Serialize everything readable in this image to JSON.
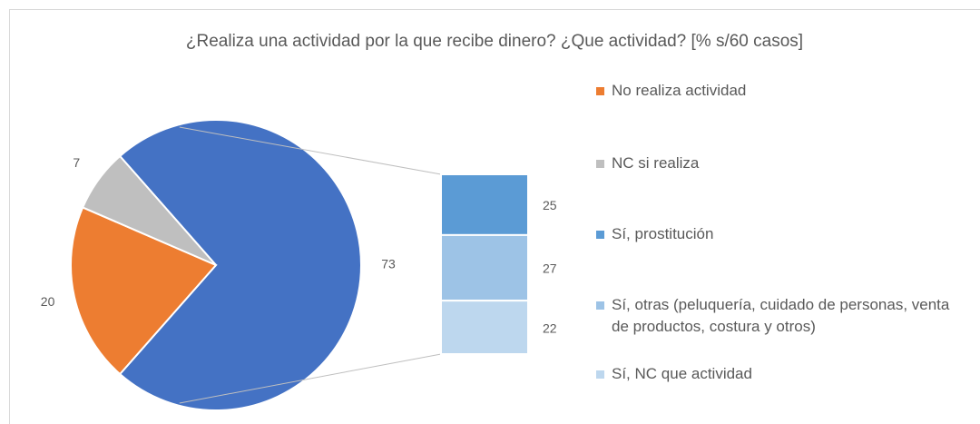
{
  "chart_data": {
    "type": "pie",
    "title": "¿Realiza una actividad por la que recibe dinero? ¿Que actividad? [% s/60 casos]",
    "categories": [
      "No realiza actividad",
      "NC si realiza",
      null
    ],
    "values": [
      20,
      7,
      73
    ],
    "colors": [
      "#ed7d31",
      "#bfbfbf",
      "#4472c4"
    ],
    "bar": {
      "categories": [
        "Sí, prostitución",
        "Sí, otras (peluquería, cuidado de personas, venta de productos, costura y otros)",
        "Sí, NC que actividad"
      ],
      "values": [
        25,
        27,
        22
      ],
      "colors": [
        "#5b9bd5",
        "#9dc3e6",
        "#bdd7ee"
      ]
    }
  }
}
